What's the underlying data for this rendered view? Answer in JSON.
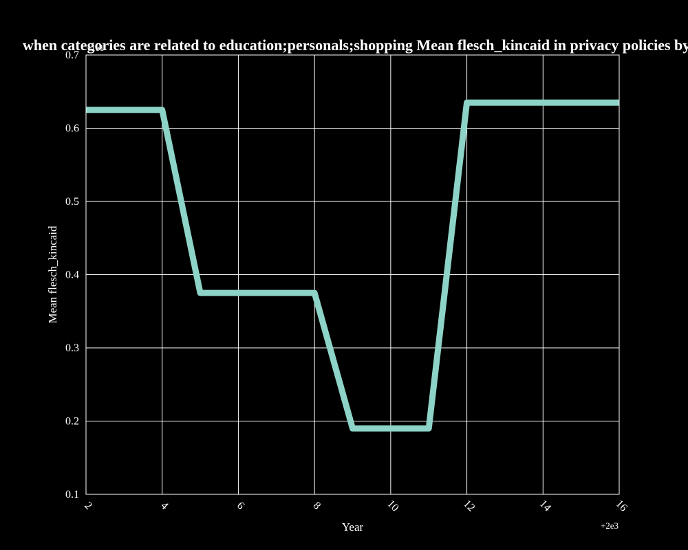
{
  "chart_data": {
    "type": "line",
    "title": "when categories are related to education;personals;shopping Mean flesch_kincaid in privacy policies by Year",
    "xlabel": "Year",
    "ylabel": "Mean flesch_kincaid",
    "x_offset_label": "+2e3",
    "y_offset_label": "+1e1",
    "xlim": [
      2,
      16
    ],
    "ylim": [
      0.1,
      0.7
    ],
    "x_ticks": [
      2,
      4,
      6,
      8,
      10,
      12,
      14,
      16
    ],
    "y_ticks": [
      0.1,
      0.2,
      0.3,
      0.4,
      0.5,
      0.6,
      0.7
    ],
    "x_tick_labels": [
      "2",
      "4",
      "6",
      "8",
      "10",
      "12",
      "14",
      "16"
    ],
    "y_tick_labels": [
      "0.1",
      "0.2",
      "0.3",
      "0.4",
      "0.5",
      "0.6",
      "0.7"
    ],
    "grid": true,
    "series": [
      {
        "color": "#8dd3c7",
        "x": [
          2,
          3,
          4,
          5,
          6,
          7,
          8,
          9,
          10,
          11,
          12,
          13,
          14,
          15,
          16
        ],
        "y": [
          0.625,
          0.625,
          0.625,
          0.375,
          0.375,
          0.375,
          0.375,
          0.19,
          0.19,
          0.19,
          0.635,
          0.635,
          0.635,
          0.635,
          0.635
        ]
      }
    ],
    "colors": {
      "background": "#000000",
      "axes": "#ffffff",
      "grid": "#ffffff",
      "text": "#ffffff"
    }
  }
}
